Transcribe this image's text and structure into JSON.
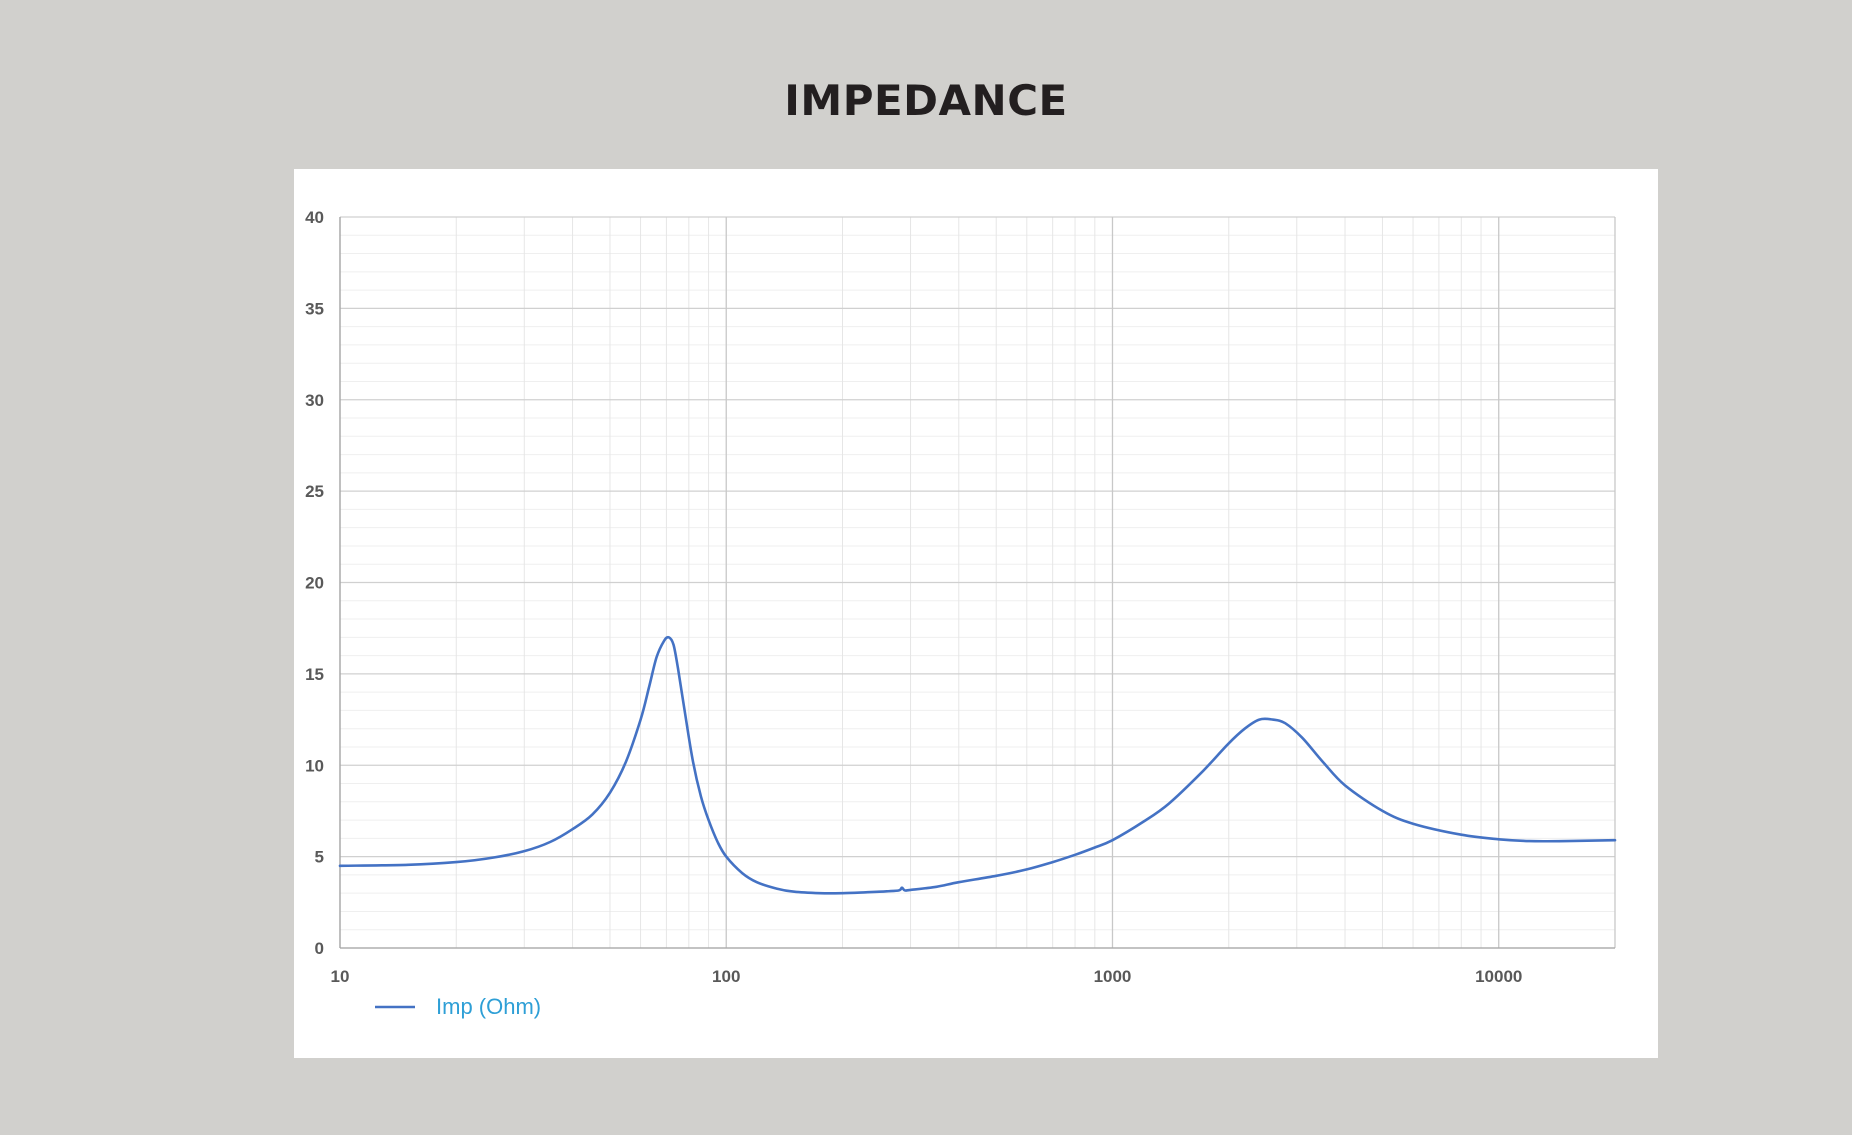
{
  "title": "IMPEDANCE",
  "chart_data": {
    "type": "line",
    "title": "IMPEDANCE",
    "xscale": "log",
    "xlim": [
      10,
      20000
    ],
    "ylim": [
      0,
      40
    ],
    "x_ticks": [
      "10",
      "100",
      "1000",
      "10000"
    ],
    "y_ticks": [
      "0",
      "5",
      "10",
      "15",
      "20",
      "25",
      "30",
      "35",
      "40"
    ],
    "grid": true,
    "legend": "bottom-left",
    "line_color": "#4472c4",
    "series": [
      {
        "name": "Imp (Ohm)",
        "x": [
          10,
          15,
          20,
          25,
          30,
          35,
          40,
          45,
          50,
          55,
          60,
          63,
          66,
          69,
          71,
          73,
          75,
          78,
          82,
          86,
          90,
          95,
          100,
          110,
          120,
          135,
          150,
          175,
          200,
          230,
          260,
          280,
          285,
          290,
          300,
          350,
          400,
          500,
          600,
          700,
          800,
          900,
          1000,
          1200,
          1400,
          1700,
          2000,
          2200,
          2400,
          2600,
          2800,
          3100,
          3500,
          4000,
          5000,
          6000,
          8000,
          10000,
          12000,
          15000,
          20000
        ],
        "values": [
          4.5,
          4.55,
          4.7,
          4.95,
          5.3,
          5.8,
          6.5,
          7.3,
          8.5,
          10.2,
          12.5,
          14.2,
          15.9,
          16.8,
          17.0,
          16.6,
          15.3,
          13.0,
          10.2,
          8.3,
          7.0,
          5.8,
          5.0,
          4.1,
          3.6,
          3.25,
          3.08,
          3.0,
          3.0,
          3.05,
          3.1,
          3.15,
          3.3,
          3.15,
          3.18,
          3.35,
          3.6,
          3.95,
          4.3,
          4.7,
          5.1,
          5.5,
          5.9,
          6.9,
          7.9,
          9.6,
          11.2,
          12.0,
          12.5,
          12.5,
          12.3,
          11.5,
          10.2,
          8.9,
          7.5,
          6.8,
          6.2,
          5.95,
          5.85,
          5.85,
          5.9
        ]
      }
    ]
  }
}
